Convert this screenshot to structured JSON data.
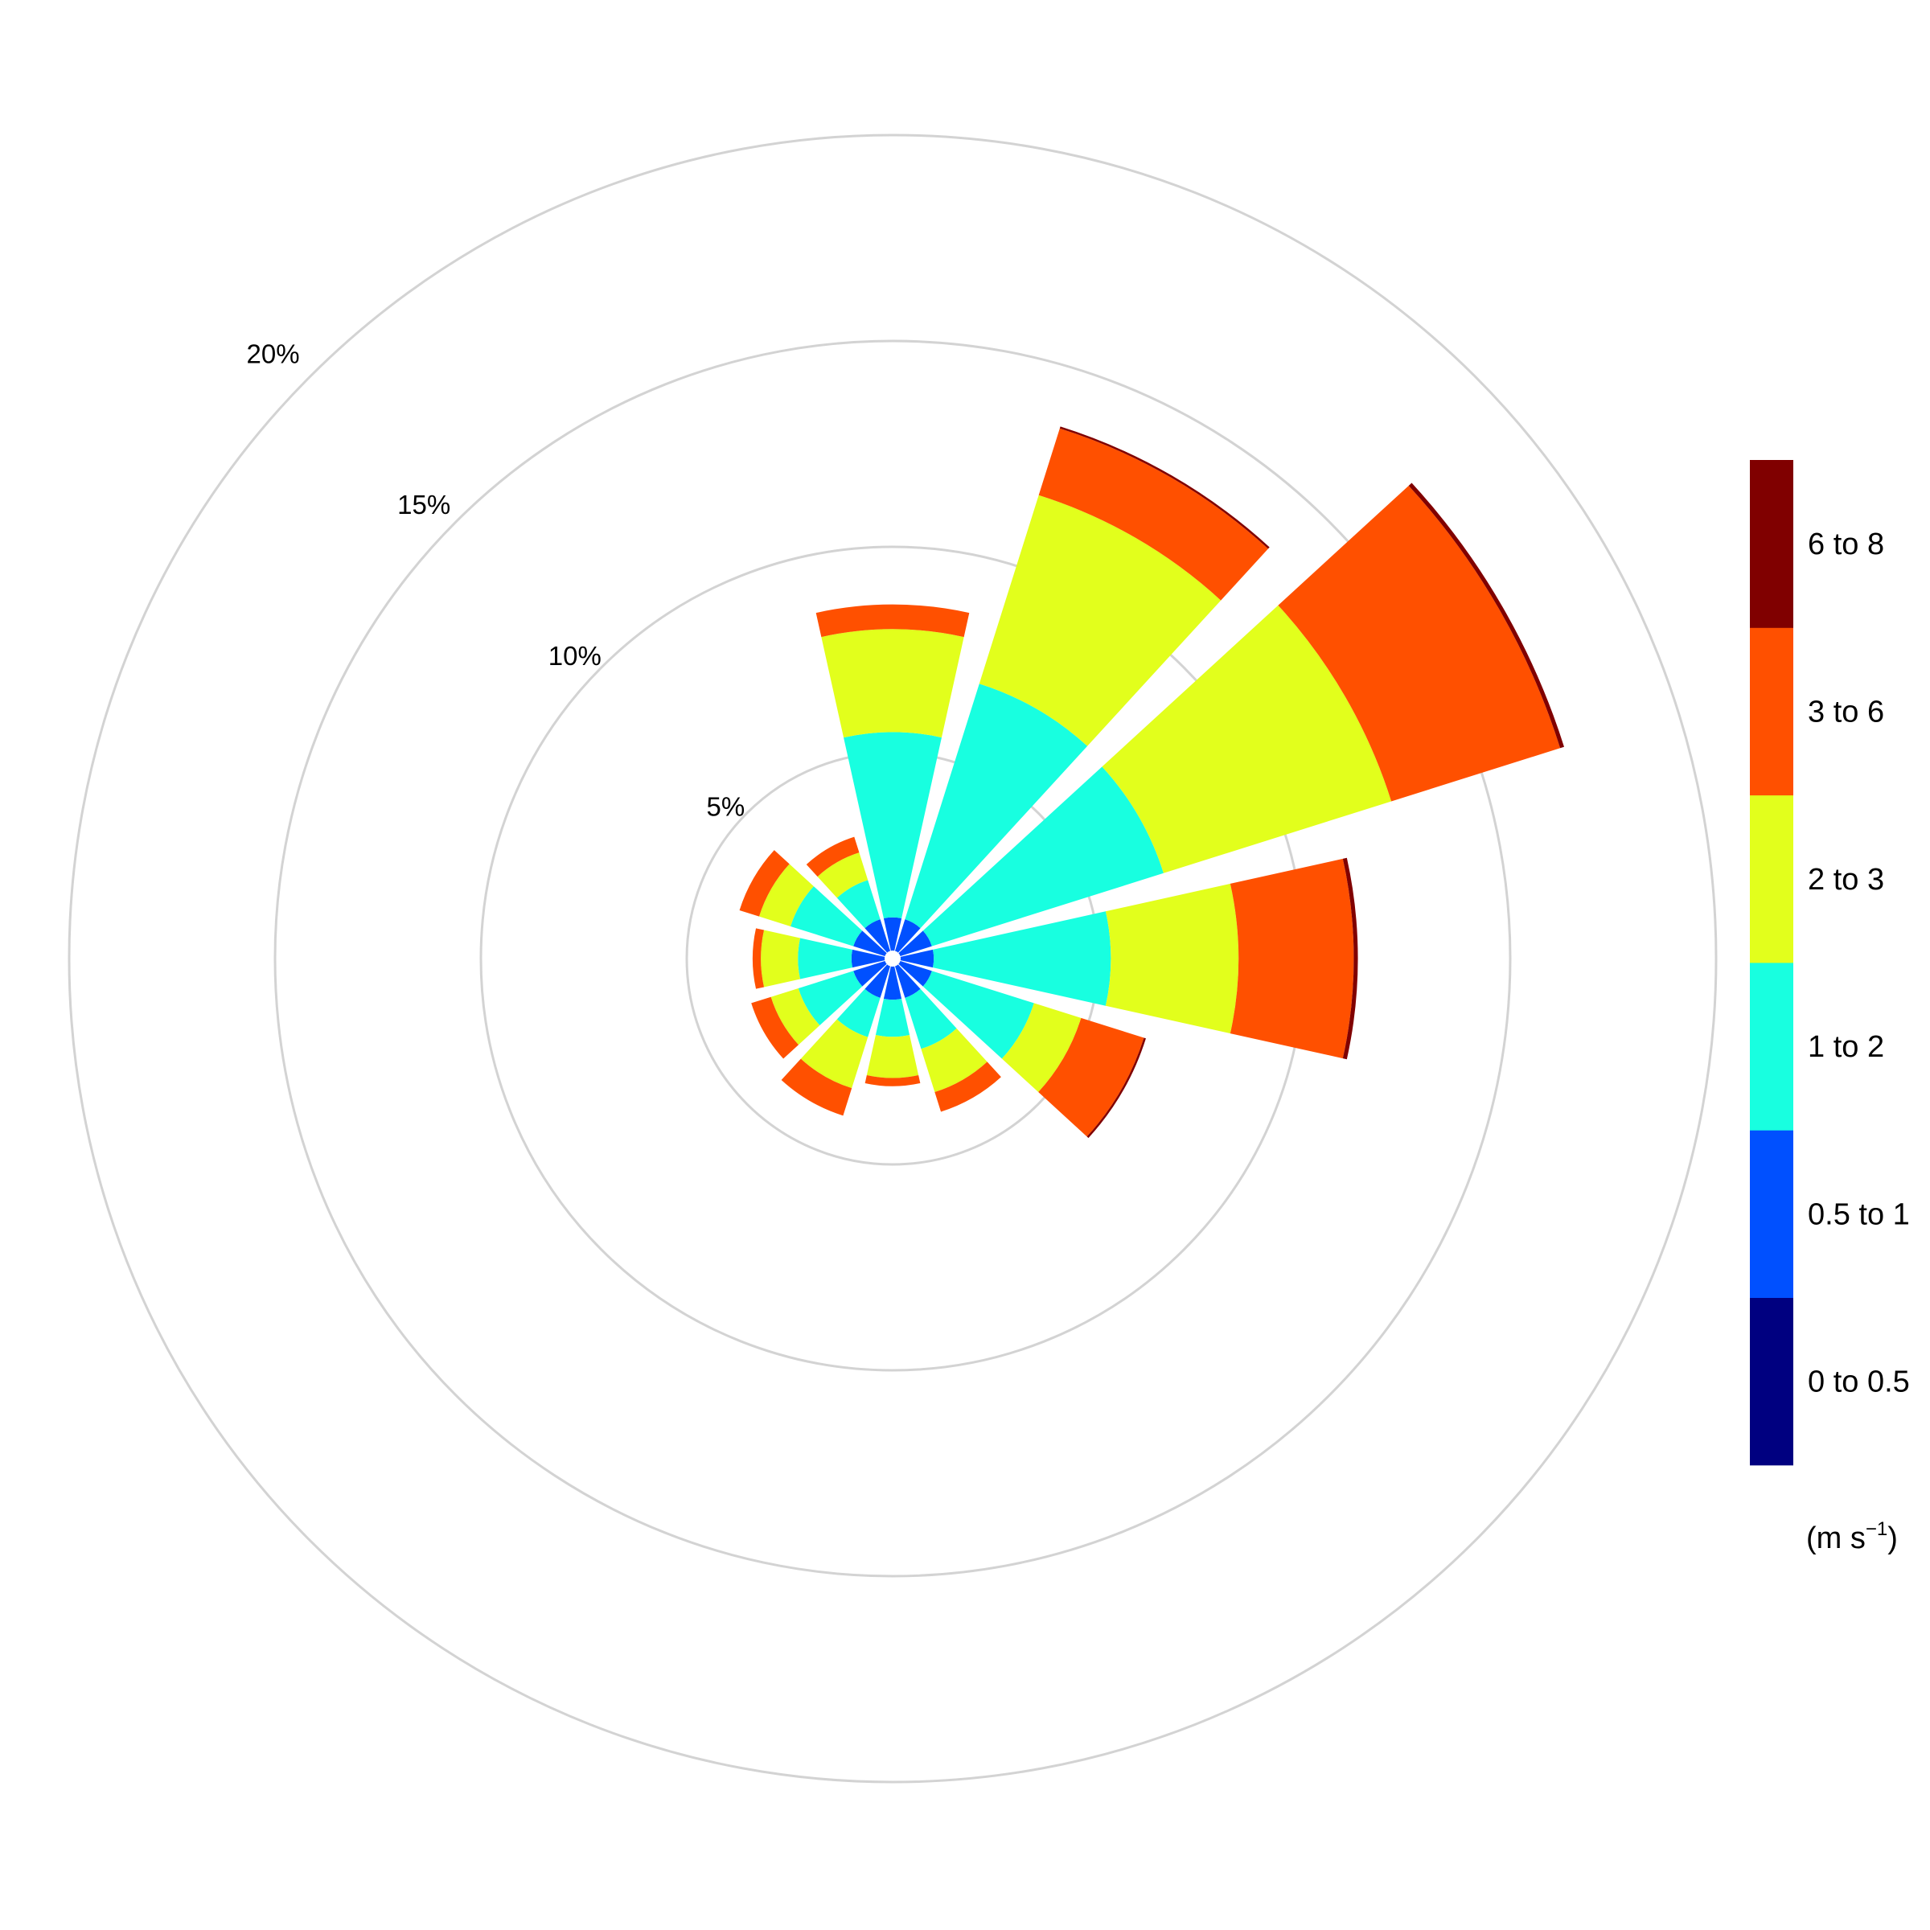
{
  "chart_data": {
    "type": "windrose",
    "unit_label": {
      "pre": "(m s",
      "sup": "−1",
      "post": ")"
    },
    "rings": [
      {
        "value": 5,
        "label": "5%"
      },
      {
        "value": 10,
        "label": "10%"
      },
      {
        "value": 15,
        "label": "15%"
      },
      {
        "value": 20,
        "label": "20%"
      }
    ],
    "bins": [
      {
        "label": "0 to 0.5",
        "color": "#000080"
      },
      {
        "label": "0.5 to 1",
        "color": "#0050FF"
      },
      {
        "label": "1 to 2",
        "color": "#18FFE0"
      },
      {
        "label": "2 to 3",
        "color": "#E2FF1C"
      },
      {
        "label": "3 to 6",
        "color": "#FF5000"
      },
      {
        "label": "6 to 8",
        "color": "#800000"
      }
    ],
    "directions": [
      {
        "angle": 0,
        "cumulative": [
          0.05,
          1.0,
          5.5,
          8.0,
          8.6,
          8.6
        ]
      },
      {
        "angle": 30,
        "cumulative": [
          0.05,
          1.0,
          7.0,
          11.8,
          13.5,
          13.55
        ]
      },
      {
        "angle": 60,
        "cumulative": [
          0.05,
          1.0,
          6.9,
          12.7,
          17.0,
          17.1
        ]
      },
      {
        "angle": 90,
        "cumulative": [
          0.05,
          1.0,
          5.3,
          8.4,
          11.2,
          11.3
        ]
      },
      {
        "angle": 120,
        "cumulative": [
          0.05,
          1.0,
          3.6,
          4.8,
          6.4,
          6.45
        ]
      },
      {
        "angle": 150,
        "cumulative": [
          0.05,
          1.0,
          2.3,
          3.4,
          3.9,
          3.9
        ]
      },
      {
        "angle": 180,
        "cumulative": [
          0.05,
          1.0,
          1.9,
          2.9,
          3.1,
          3.1
        ]
      },
      {
        "angle": 210,
        "cumulative": [
          0.05,
          1.0,
          2.0,
          3.3,
          4.0,
          4.0
        ]
      },
      {
        "angle": 240,
        "cumulative": [
          0.05,
          1.0,
          2.4,
          3.1,
          3.6,
          3.6
        ]
      },
      {
        "angle": 270,
        "cumulative": [
          0.05,
          1.0,
          2.3,
          3.2,
          3.4,
          3.4
        ]
      },
      {
        "angle": 300,
        "cumulative": [
          0.05,
          1.0,
          2.6,
          3.4,
          3.9,
          3.9
        ]
      },
      {
        "angle": 330,
        "cumulative": [
          0.05,
          1.0,
          2.0,
          2.7,
          3.1,
          3.1
        ]
      }
    ]
  }
}
